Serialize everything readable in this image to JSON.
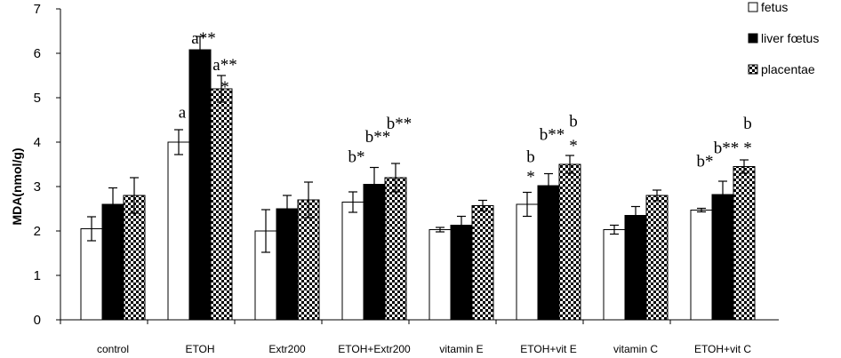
{
  "chart_data": {
    "type": "bar",
    "title": "",
    "xlabel": "",
    "ylabel": "MDA(nmol/g)",
    "ylim": [
      0,
      7
    ],
    "yticks": [
      0,
      1,
      2,
      3,
      4,
      5,
      6,
      7
    ],
    "grid": false,
    "legend_position": "top-right",
    "categories": [
      "control",
      "ETOH",
      "Extr200",
      "ETOH+Extr200",
      "vitamin E",
      "ETOH+vit E",
      "vitamin C",
      "ETOH+vit C"
    ],
    "series": [
      {
        "name": "fetus",
        "fill": "white",
        "values": [
          2.05,
          4.0,
          2.0,
          2.65,
          2.03,
          2.6,
          2.03,
          2.47
        ],
        "errors": [
          0.27,
          0.28,
          0.48,
          0.23,
          0.05,
          0.27,
          0.1,
          0.04
        ]
      },
      {
        "name": "liver fœtus",
        "fill": "black",
        "values": [
          2.6,
          6.08,
          2.5,
          3.05,
          2.13,
          3.02,
          2.35,
          2.82
        ],
        "errors": [
          0.37,
          0.3,
          0.3,
          0.38,
          0.2,
          0.27,
          0.2,
          0.3
        ]
      },
      {
        "name": "placentae",
        "fill": "checker",
        "values": [
          2.8,
          5.2,
          2.7,
          3.2,
          2.57,
          3.5,
          2.8,
          3.45
        ],
        "errors": [
          0.4,
          0.3,
          0.4,
          0.32,
          0.12,
          0.2,
          0.12,
          0.15
        ]
      }
    ],
    "annotations": [
      {
        "text": "a**",
        "category": 1,
        "series": 1,
        "y": 6.22
      },
      {
        "text": "*",
        "category": 1,
        "series": 1,
        "y": 5.68
      },
      {
        "text": "a**",
        "category": 1,
        "series": 2,
        "y": 5.62
      },
      {
        "text": "*",
        "category": 1,
        "series": 2,
        "y": 5.12
      },
      {
        "text": "a",
        "category": 1,
        "series": 0,
        "y": 4.55
      },
      {
        "text": "b*",
        "category": 3,
        "series": 0,
        "y": 3.55
      },
      {
        "text": "b**",
        "category": 3,
        "series": 1,
        "y": 4.0
      },
      {
        "text": "b**",
        "category": 3,
        "series": 2,
        "y": 4.3
      },
      {
        "text": "b",
        "category": 5,
        "series": 0,
        "y": 3.55
      },
      {
        "text": "*",
        "category": 5,
        "series": 0,
        "y": 3.1
      },
      {
        "text": "b**",
        "category": 5,
        "series": 1,
        "y": 4.05
      },
      {
        "text": "b",
        "category": 5,
        "series": 2,
        "y": 4.35
      },
      {
        "text": "*",
        "category": 5,
        "series": 2,
        "y": 3.8
      },
      {
        "text": "b",
        "category": 7,
        "series": 2,
        "y": 4.3
      },
      {
        "text": "b**",
        "category": 7,
        "series": 1,
        "y": 3.75
      },
      {
        "text": "*",
        "category": 7,
        "series": 2,
        "y": 3.75
      },
      {
        "text": "b*",
        "category": 7,
        "series": 0,
        "y": 3.45
      }
    ]
  }
}
